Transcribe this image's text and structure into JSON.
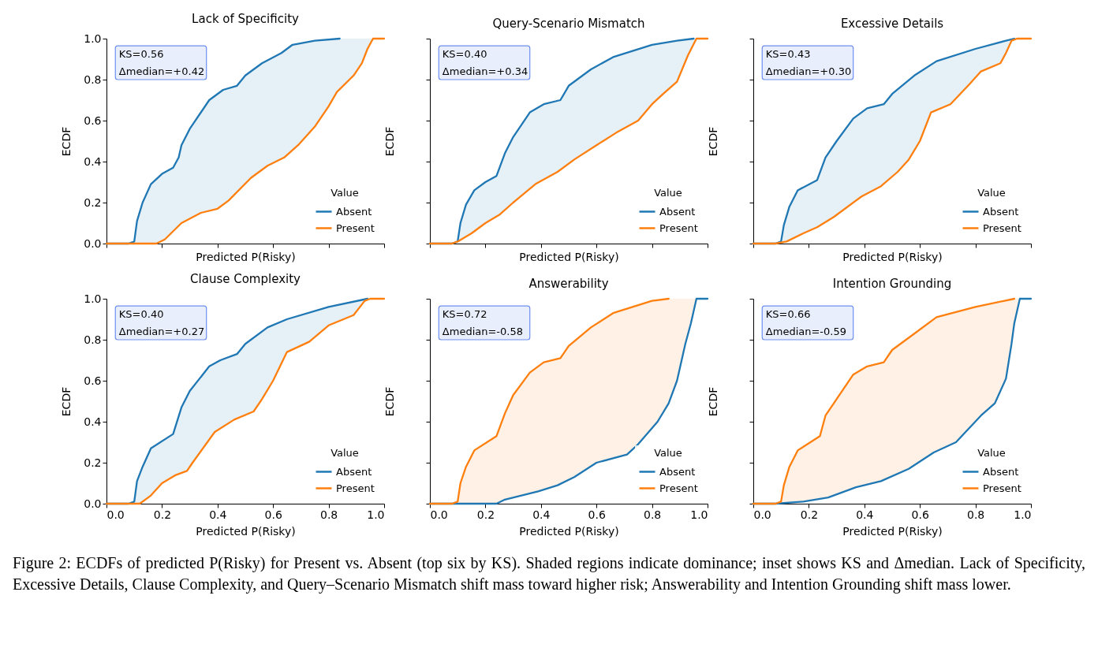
{
  "chart_data": [
    {
      "type": "line",
      "title": "Lack of Specificity",
      "xlabel": "Predicted P(Risky)",
      "ylabel": "ECDF",
      "legend": "bottom right",
      "legend_title": "Value",
      "grid": false,
      "tick_labels": "y",
      "xlim": [
        0,
        1
      ],
      "ylim": [
        0,
        1
      ],
      "xticks": [
        {
          "value": 0,
          "label": null
        },
        {
          "value": 0.2,
          "label": null
        },
        {
          "value": 0.4,
          "label": null
        },
        {
          "value": 0.6,
          "label": null
        },
        {
          "value": 0.8,
          "label": null
        },
        {
          "value": 1,
          "label": null
        }
      ],
      "yticks": [
        {
          "value": 0,
          "label": "0.0"
        },
        {
          "value": 0.2,
          "label": "0.2"
        },
        {
          "value": 0.4,
          "label": "0.4"
        },
        {
          "value": 0.6,
          "label": "0.6"
        },
        {
          "value": 0.8,
          "label": "0.8"
        },
        {
          "value": 1,
          "label": "1.0"
        }
      ],
      "annotations": [
        "KS=0.56",
        "Δmedian=+0.42"
      ],
      "series": [
        {
          "name": "Absent",
          "color": "#1f77b4",
          "x": [
            0,
            0.08,
            0.1,
            0.11,
            0.13,
            0.16,
            0.2,
            0.24,
            0.26,
            0.27,
            0.3,
            0.37,
            0.42,
            0.47,
            0.5,
            0.56,
            0.63,
            0.67,
            0.75,
            0.84
          ],
          "values": [
            0,
            0,
            0.01,
            0.11,
            0.2,
            0.29,
            0.34,
            0.37,
            0.42,
            0.48,
            0.56,
            0.7,
            0.75,
            0.77,
            0.82,
            0.88,
            0.93,
            0.97,
            0.99,
            1
          ]
        },
        {
          "name": "Present",
          "color": "#ff7f0e",
          "x": [
            0,
            0.18,
            0.21,
            0.27,
            0.34,
            0.4,
            0.44,
            0.52,
            0.58,
            0.64,
            0.69,
            0.75,
            0.8,
            0.83,
            0.89,
            0.92,
            0.94,
            0.96,
            1
          ],
          "values": [
            0,
            0,
            0.02,
            0.1,
            0.15,
            0.17,
            0.21,
            0.32,
            0.38,
            0.42,
            0.48,
            0.57,
            0.67,
            0.74,
            0.82,
            0.88,
            0.95,
            1,
            1
          ]
        }
      ]
    },
    {
      "type": "line",
      "title": "Query-Scenario Mismatch",
      "xlabel": "Predicted P(Risky)",
      "ylabel": "ECDF",
      "legend": "bottom right",
      "legend_title": "Value",
      "grid": false,
      "tick_labels": false,
      "xlim": [
        0,
        1
      ],
      "ylim": [
        0,
        1
      ],
      "xticks": [
        {
          "value": 0,
          "label": null
        },
        {
          "value": 0.2,
          "label": null
        },
        {
          "value": 0.4,
          "label": null
        },
        {
          "value": 0.6,
          "label": null
        },
        {
          "value": 0.8,
          "label": null
        },
        {
          "value": 1,
          "label": null
        }
      ],
      "yticks": [
        {
          "value": 0,
          "label": null
        },
        {
          "value": 0.2,
          "label": null
        },
        {
          "value": 0.4,
          "label": null
        },
        {
          "value": 0.6,
          "label": null
        },
        {
          "value": 0.8,
          "label": null
        },
        {
          "value": 1,
          "label": null
        }
      ],
      "annotations": [
        "KS=0.40",
        "Δmedian=+0.34"
      ],
      "series": [
        {
          "name": "Absent",
          "color": "#1f77b4",
          "x": [
            0,
            0.08,
            0.1,
            0.11,
            0.13,
            0.16,
            0.2,
            0.24,
            0.27,
            0.3,
            0.36,
            0.41,
            0.47,
            0.5,
            0.58,
            0.66,
            0.8,
            0.89,
            0.95
          ],
          "values": [
            0,
            0,
            0.01,
            0.1,
            0.19,
            0.26,
            0.3,
            0.33,
            0.44,
            0.52,
            0.64,
            0.68,
            0.7,
            0.77,
            0.85,
            0.91,
            0.97,
            0.99,
            1
          ]
        },
        {
          "name": "Present",
          "color": "#ff7f0e",
          "x": [
            0,
            0.08,
            0.1,
            0.15,
            0.2,
            0.25,
            0.3,
            0.38,
            0.46,
            0.52,
            0.6,
            0.67,
            0.75,
            0.8,
            0.84,
            0.89,
            0.93,
            0.96,
            1
          ],
          "values": [
            0,
            0,
            0.01,
            0.05,
            0.1,
            0.14,
            0.2,
            0.29,
            0.35,
            0.41,
            0.48,
            0.54,
            0.6,
            0.68,
            0.73,
            0.79,
            0.92,
            1,
            1
          ]
        }
      ]
    },
    {
      "type": "line",
      "title": "Excessive Details",
      "xlabel": "Predicted P(Risky)",
      "ylabel": "ECDF",
      "legend": "bottom right",
      "legend_title": "Value",
      "grid": false,
      "tick_labels": false,
      "xlim": [
        0,
        1
      ],
      "ylim": [
        0,
        1
      ],
      "xticks": [
        {
          "value": 0,
          "label": null
        },
        {
          "value": 0.2,
          "label": null
        },
        {
          "value": 0.4,
          "label": null
        },
        {
          "value": 0.6,
          "label": null
        },
        {
          "value": 0.8,
          "label": null
        },
        {
          "value": 1,
          "label": null
        }
      ],
      "yticks": [
        {
          "value": 0,
          "label": null
        },
        {
          "value": 0.2,
          "label": null
        },
        {
          "value": 0.4,
          "label": null
        },
        {
          "value": 0.6,
          "label": null
        },
        {
          "value": 0.8,
          "label": null
        },
        {
          "value": 1,
          "label": null
        }
      ],
      "annotations": [
        "KS=0.43",
        "Δmedian=+0.30"
      ],
      "series": [
        {
          "name": "Absent",
          "color": "#1f77b4",
          "x": [
            0,
            0.08,
            0.1,
            0.11,
            0.13,
            0.16,
            0.23,
            0.26,
            0.3,
            0.36,
            0.41,
            0.47,
            0.5,
            0.58,
            0.66,
            0.8,
            0.91,
            0.94
          ],
          "values": [
            0,
            0,
            0.01,
            0.09,
            0.18,
            0.26,
            0.31,
            0.42,
            0.5,
            0.61,
            0.66,
            0.68,
            0.73,
            0.82,
            0.89,
            0.95,
            0.99,
            1
          ]
        },
        {
          "name": "Present",
          "color": "#ff7f0e",
          "x": [
            0,
            0.08,
            0.12,
            0.18,
            0.23,
            0.29,
            0.39,
            0.46,
            0.52,
            0.56,
            0.6,
            0.64,
            0.71,
            0.78,
            0.82,
            0.89,
            0.91,
            0.93,
            0.95,
            1
          ],
          "values": [
            0,
            0,
            0.01,
            0.05,
            0.08,
            0.13,
            0.23,
            0.28,
            0.35,
            0.41,
            0.5,
            0.64,
            0.68,
            0.78,
            0.84,
            0.88,
            0.93,
            0.99,
            1,
            1
          ]
        }
      ]
    },
    {
      "type": "line",
      "title": "Clause Complexity",
      "xlabel": "Predicted P(Risky)",
      "ylabel": "ECDF",
      "legend": "bottom right",
      "legend_title": "Value",
      "grid": false,
      "xlim": [
        0,
        1
      ],
      "ylim": [
        0,
        1
      ],
      "xticks": [
        {
          "value": 0,
          "label": "0.0"
        },
        {
          "value": 0.2,
          "label": "0.2"
        },
        {
          "value": 0.4,
          "label": "0.4"
        },
        {
          "value": 0.6,
          "label": "0.6"
        },
        {
          "value": 0.8,
          "label": "0.8"
        },
        {
          "value": 1,
          "label": "1.0"
        }
      ],
      "yticks": [
        {
          "value": 0,
          "label": "0.0"
        },
        {
          "value": 0.2,
          "label": "0.2"
        },
        {
          "value": 0.4,
          "label": "0.4"
        },
        {
          "value": 0.6,
          "label": "0.6"
        },
        {
          "value": 0.8,
          "label": "0.8"
        },
        {
          "value": 1,
          "label": "1.0"
        }
      ],
      "annotations": [
        "KS=0.40",
        "Δmedian=+0.27"
      ],
      "series": [
        {
          "name": "Absent",
          "color": "#1f77b4",
          "x": [
            0,
            0.08,
            0.1,
            0.11,
            0.13,
            0.16,
            0.24,
            0.27,
            0.3,
            0.37,
            0.41,
            0.47,
            0.5,
            0.58,
            0.65,
            0.8,
            0.94
          ],
          "values": [
            0,
            0,
            0.01,
            0.11,
            0.18,
            0.27,
            0.34,
            0.47,
            0.55,
            0.67,
            0.7,
            0.73,
            0.78,
            0.86,
            0.9,
            0.96,
            1
          ]
        },
        {
          "name": "Present",
          "color": "#ff7f0e",
          "x": [
            0,
            0.12,
            0.16,
            0.2,
            0.25,
            0.29,
            0.31,
            0.39,
            0.46,
            0.53,
            0.56,
            0.6,
            0.65,
            0.73,
            0.8,
            0.89,
            0.93,
            0.95,
            1
          ],
          "values": [
            0,
            0,
            0.04,
            0.1,
            0.14,
            0.16,
            0.2,
            0.35,
            0.41,
            0.45,
            0.51,
            0.6,
            0.74,
            0.79,
            0.87,
            0.92,
            0.99,
            1,
            1
          ]
        }
      ]
    },
    {
      "type": "line",
      "title": "Answerability",
      "xlabel": "Predicted P(Risky)",
      "ylabel": "ECDF",
      "legend": "bottom right",
      "legend_title": "Value",
      "grid": false,
      "tick_labels": "x",
      "xlim": [
        0,
        1
      ],
      "ylim": [
        0,
        1
      ],
      "xticks": [
        {
          "value": 0,
          "label": "0.0"
        },
        {
          "value": 0.2,
          "label": "0.2"
        },
        {
          "value": 0.4,
          "label": "0.4"
        },
        {
          "value": 0.6,
          "label": "0.6"
        },
        {
          "value": 0.8,
          "label": "0.8"
        },
        {
          "value": 1,
          "label": "1.0"
        }
      ],
      "yticks": [
        {
          "value": 0,
          "label": null
        },
        {
          "value": 0.2,
          "label": null
        },
        {
          "value": 0.4,
          "label": null
        },
        {
          "value": 0.6,
          "label": null
        },
        {
          "value": 0.8,
          "label": null
        },
        {
          "value": 1,
          "label": null
        }
      ],
      "annotations": [
        "KS=0.72",
        "Δmedian=-0.58"
      ],
      "series": [
        {
          "name": "Absent",
          "color": "#1f77b4",
          "x": [
            0,
            0.24,
            0.27,
            0.39,
            0.46,
            0.52,
            0.6,
            0.71,
            0.75,
            0.82,
            0.86,
            0.89,
            0.92,
            0.94,
            0.96,
            1
          ],
          "values": [
            0,
            0,
            0.02,
            0.06,
            0.09,
            0.13,
            0.2,
            0.24,
            0.29,
            0.4,
            0.49,
            0.6,
            0.78,
            0.88,
            1,
            1
          ]
        },
        {
          "name": "Present",
          "color": "#ff7f0e",
          "x": [
            0,
            0.08,
            0.1,
            0.11,
            0.13,
            0.16,
            0.24,
            0.27,
            0.3,
            0.36,
            0.41,
            0.47,
            0.5,
            0.58,
            0.66,
            0.8,
            0.86
          ],
          "values": [
            0,
            0,
            0.01,
            0.1,
            0.18,
            0.26,
            0.33,
            0.44,
            0.53,
            0.64,
            0.69,
            0.71,
            0.77,
            0.86,
            0.93,
            0.99,
            1
          ]
        }
      ]
    },
    {
      "type": "line",
      "title": "Intention Grounding",
      "xlabel": "Predicted P(Risky)",
      "ylabel": "ECDF",
      "legend": "bottom right",
      "legend_title": "Value",
      "grid": false,
      "tick_labels": "x",
      "xlim": [
        0,
        1
      ],
      "ylim": [
        0,
        1
      ],
      "xticks": [
        {
          "value": 0,
          "label": "0.0"
        },
        {
          "value": 0.2,
          "label": "0.2"
        },
        {
          "value": 0.4,
          "label": "0.4"
        },
        {
          "value": 0.6,
          "label": "0.6"
        },
        {
          "value": 0.8,
          "label": "0.8"
        },
        {
          "value": 1,
          "label": "1.0"
        }
      ],
      "yticks": [
        {
          "value": 0,
          "label": null
        },
        {
          "value": 0.2,
          "label": null
        },
        {
          "value": 0.4,
          "label": null
        },
        {
          "value": 0.6,
          "label": null
        },
        {
          "value": 0.8,
          "label": null
        },
        {
          "value": 1,
          "label": null
        }
      ],
      "annotations": [
        "KS=0.66",
        "Δmedian=-0.59",
        "Figure 2: ECDFs of predicted P(Risky) for Present vs. Absent (top six by KS). Shaded regions indicate dominance; inset shows KS and Δmedian. Lack of Specificity, Excessive Details, Clause Complexity, and Query–Scenario Mismatch shift mass toward higher risk; Answerability and Intention Grounding shift mass lower."
      ],
      "series": [
        {
          "name": "Absent",
          "color": "#1f77b4",
          "x": [
            0,
            0.08,
            0.18,
            0.27,
            0.37,
            0.46,
            0.56,
            0.65,
            0.73,
            0.82,
            0.87,
            0.91,
            0.93,
            0.94,
            0.96,
            1
          ],
          "values": [
            0,
            0,
            0.01,
            0.03,
            0.08,
            0.11,
            0.17,
            0.25,
            0.3,
            0.43,
            0.49,
            0.61,
            0.78,
            0.88,
            1,
            1
          ]
        },
        {
          "name": "Present",
          "color": "#ff7f0e",
          "x": [
            0,
            0.08,
            0.1,
            0.11,
            0.13,
            0.16,
            0.24,
            0.26,
            0.3,
            0.36,
            0.41,
            0.47,
            0.5,
            0.58,
            0.66,
            0.8,
            0.94
          ],
          "values": [
            0,
            0,
            0.01,
            0.09,
            0.18,
            0.26,
            0.33,
            0.43,
            0.51,
            0.63,
            0.67,
            0.69,
            0.75,
            0.83,
            0.91,
            0.96,
            1
          ]
        }
      ]
    }
  ]
}
